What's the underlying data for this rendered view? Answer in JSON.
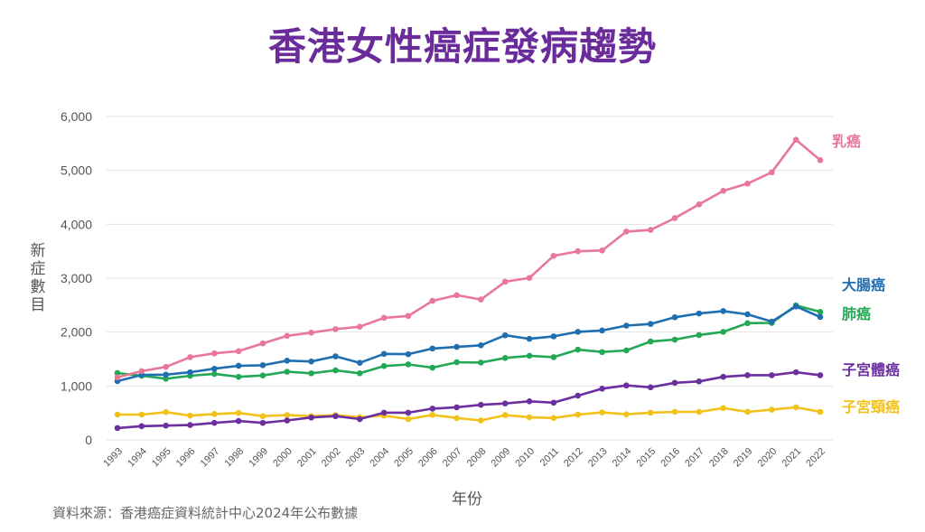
{
  "title": "香港女性癌症發病趨勢",
  "source_note": "資料來源：香港癌症資料統計中心2024年公布數據",
  "chart_data": {
    "type": "line",
    "title": "香港女性癌症發病趨勢",
    "xlabel": "年份",
    "ylabel": "新症數目",
    "ylim": [
      0,
      6000
    ],
    "yticks": [
      0,
      1000,
      2000,
      3000,
      4000,
      5000,
      6000
    ],
    "ytick_labels": [
      "0",
      "1,000",
      "2,000",
      "3,000",
      "4,000",
      "5,000",
      "6,000"
    ],
    "grid": true,
    "legend": "right (labels at line ends)",
    "x": [
      "1993",
      "1994",
      "1995",
      "1996",
      "1997",
      "1998",
      "1999",
      "2000",
      "2001",
      "2002",
      "2003",
      "2004",
      "2005",
      "2006",
      "2007",
      "2008",
      "2009",
      "2010",
      "2011",
      "2012",
      "2013",
      "2014",
      "2015",
      "2016",
      "2017",
      "2018",
      "2019",
      "2020",
      "2021",
      "2022"
    ],
    "series": [
      {
        "name": "乳癌",
        "color": "#e8779a",
        "values": [
          1160,
          1275,
          1355,
          1535,
          1605,
          1645,
          1790,
          1930,
          1990,
          2055,
          2100,
          2265,
          2300,
          2580,
          2685,
          2605,
          2935,
          3005,
          3415,
          3500,
          3515,
          3865,
          3895,
          4115,
          4370,
          4620,
          4755,
          4965,
          5570,
          5190
        ]
      },
      {
        "name": "大腸癌",
        "color": "#1f6fb0",
        "values": [
          1090,
          1205,
          1210,
          1255,
          1320,
          1375,
          1385,
          1470,
          1455,
          1550,
          1430,
          1595,
          1590,
          1695,
          1725,
          1755,
          1940,
          1875,
          1920,
          2005,
          2030,
          2120,
          2150,
          2275,
          2345,
          2390,
          2330,
          2195,
          2475,
          2280
        ]
      },
      {
        "name": "肺癌",
        "color": "#23a855",
        "values": [
          1240,
          1190,
          1135,
          1190,
          1225,
          1170,
          1195,
          1265,
          1235,
          1290,
          1235,
          1370,
          1400,
          1340,
          1440,
          1435,
          1520,
          1560,
          1535,
          1675,
          1630,
          1660,
          1825,
          1860,
          1945,
          2005,
          2165,
          2170,
          2495,
          2375
        ]
      },
      {
        "name": "子宮體癌",
        "color": "#6b2fa0",
        "values": [
          220,
          255,
          265,
          275,
          315,
          350,
          315,
          360,
          415,
          440,
          385,
          505,
          505,
          580,
          605,
          650,
          675,
          715,
          690,
          820,
          950,
          1010,
          975,
          1060,
          1085,
          1170,
          1200,
          1200,
          1255,
          1200
        ]
      },
      {
        "name": "子宮頸癌",
        "color": "#f2c21b",
        "values": [
          470,
          470,
          515,
          450,
          480,
          500,
          440,
          460,
          440,
          460,
          420,
          450,
          385,
          465,
          405,
          360,
          460,
          420,
          405,
          470,
          510,
          475,
          505,
          520,
          520,
          590,
          520,
          560,
          605,
          520
        ]
      }
    ]
  }
}
